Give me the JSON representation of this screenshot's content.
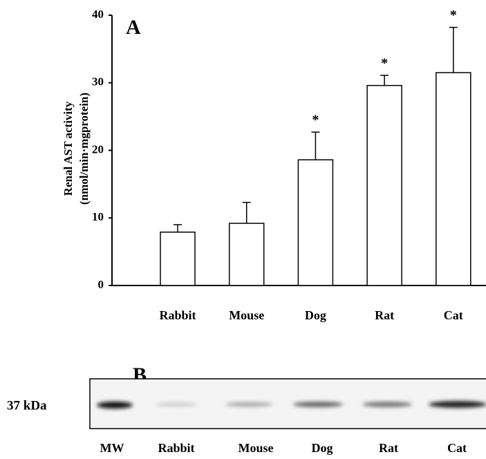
{
  "chart_data": {
    "type": "bar",
    "panel_label": "A",
    "ylabel": [
      "Renal AST activity",
      "(nmol/min·mgprotein)"
    ],
    "categories": [
      "Rabbit",
      "Mouse",
      "Dog",
      "Rat",
      "Cat"
    ],
    "values": [
      7.9,
      9.2,
      18.6,
      29.6,
      31.5
    ],
    "errors": [
      1.1,
      3.1,
      4.1,
      1.5,
      6.7
    ],
    "significance_labels": [
      null,
      null,
      "*",
      "*",
      "*"
    ],
    "color": "#ffffff",
    "ylim": [
      0,
      40
    ],
    "yticks": [
      0,
      10,
      20,
      30,
      40
    ],
    "grid": false
  },
  "blot": {
    "panel_label": "B",
    "marker": "37 kDa",
    "lanes": [
      "MW",
      "Rabbit",
      "Mouse",
      "Dog",
      "Rat",
      "Cat"
    ]
  }
}
